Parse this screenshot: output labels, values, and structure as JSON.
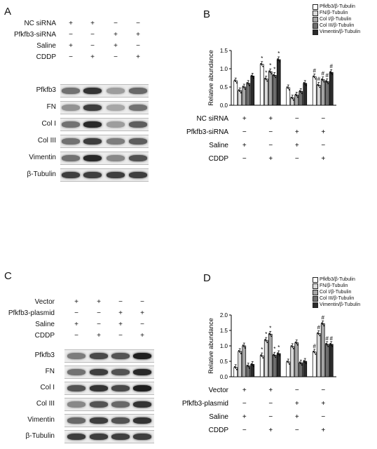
{
  "panels": {
    "A": {
      "letter": "A",
      "rows": [
        {
          "label": "NC siRNA",
          "signs": [
            "+",
            "+",
            "−",
            "−"
          ]
        },
        {
          "label": "Pfkfb3-siRNA",
          "signs": [
            "−",
            "−",
            "+",
            "+"
          ]
        },
        {
          "label": "Saline",
          "signs": [
            "+",
            "−",
            "+",
            "−"
          ]
        },
        {
          "label": "CDDP",
          "signs": [
            "−",
            "+",
            "−",
            "+"
          ]
        }
      ],
      "blots": [
        {
          "label": "Pfkfb3",
          "intensity": [
            0.55,
            0.85,
            0.35,
            0.6
          ]
        },
        {
          "label": "FN",
          "intensity": [
            0.4,
            0.8,
            0.3,
            0.55
          ]
        },
        {
          "label": "Col I",
          "intensity": [
            0.55,
            0.9,
            0.35,
            0.65
          ]
        },
        {
          "label": "Col III",
          "intensity": [
            0.55,
            0.8,
            0.5,
            0.65
          ]
        },
        {
          "label": "Vimentin",
          "intensity": [
            0.55,
            0.9,
            0.45,
            0.7
          ]
        },
        {
          "label": "β-Tubulin",
          "intensity": [
            0.8,
            0.8,
            0.8,
            0.8
          ]
        }
      ]
    },
    "C": {
      "letter": "C",
      "rows": [
        {
          "label": "Vector",
          "signs": [
            "+",
            "+",
            "−",
            "−"
          ]
        },
        {
          "label": "Pfkfb3-plasmid",
          "signs": [
            "−",
            "−",
            "+",
            "+"
          ]
        },
        {
          "label": "Saline",
          "signs": [
            "+",
            "−",
            "+",
            "−"
          ]
        },
        {
          "label": "CDDP",
          "signs": [
            "−",
            "+",
            "−",
            "+"
          ]
        }
      ],
      "blots": [
        {
          "label": "Pfkfb3",
          "intensity": [
            0.5,
            0.75,
            0.7,
            0.95
          ]
        },
        {
          "label": "FN",
          "intensity": [
            0.55,
            0.8,
            0.7,
            0.9
          ]
        },
        {
          "label": "Col I",
          "intensity": [
            0.7,
            0.85,
            0.75,
            0.95
          ]
        },
        {
          "label": "Col III",
          "intensity": [
            0.45,
            0.7,
            0.6,
            0.85
          ]
        },
        {
          "label": "Vimentin",
          "intensity": [
            0.6,
            0.8,
            0.7,
            0.85
          ]
        },
        {
          "label": "β-Tubulin",
          "intensity": [
            0.8,
            0.8,
            0.8,
            0.8
          ]
        }
      ]
    }
  },
  "chart_data": [
    {
      "panel": "B",
      "type": "bar",
      "ylabel": "Relative abundance",
      "ylim": [
        0,
        1.5
      ],
      "yticks": [
        "0.0",
        "0.5",
        "1.0",
        "1.5"
      ],
      "legend": [
        "Pfkfb3/β-Tubulin",
        "FN/β-Tubulin",
        "Col I/β-Tubulin",
        "Col III/β-Tubulin",
        "Vimentin/β-Tubulin"
      ],
      "legend_position": "top-right",
      "series_colors": [
        "#ffffff",
        "#d9d9d9",
        "#a6a6a6",
        "#6e6e6e",
        "#2b2b2b"
      ],
      "groups": [
        {
          "values": [
            0.67,
            0.4,
            0.5,
            0.6,
            0.8
          ],
          "marks": [
            "",
            "",
            "",
            "",
            ""
          ]
        },
        {
          "values": [
            1.12,
            0.72,
            0.92,
            0.82,
            1.25
          ],
          "marks": [
            "*",
            "*",
            "*",
            "*",
            "*"
          ]
        },
        {
          "values": [
            0.48,
            0.2,
            0.28,
            0.38,
            0.6
          ],
          "marks": [
            "",
            "",
            "",
            "",
            ""
          ]
        },
        {
          "values": [
            0.78,
            0.55,
            0.7,
            0.65,
            0.9
          ],
          "marks": [
            "#",
            "#",
            "#",
            "#",
            "#"
          ]
        }
      ],
      "conditions": [
        {
          "label": "NC siRNA",
          "signs": [
            "+",
            "+",
            "−",
            "−"
          ]
        },
        {
          "label": "Pfkfb3-siRNA",
          "signs": [
            "−",
            "−",
            "+",
            "+"
          ]
        },
        {
          "label": "Saline",
          "signs": [
            "+",
            "−",
            "+",
            "−"
          ]
        },
        {
          "label": "CDDP",
          "signs": [
            "−",
            "+",
            "−",
            "+"
          ]
        }
      ]
    },
    {
      "panel": "D",
      "type": "bar",
      "ylabel": "Relative abundance",
      "ylim": [
        0,
        2.0
      ],
      "yticks": [
        "0.0",
        "0.5",
        "1.0",
        "1.5",
        "2.0"
      ],
      "legend": [
        "Pfkfb3/β-Tubulin",
        "FN/β-Tubulin",
        "Col I/β-Tubulin",
        "Col III/β-Tubulin",
        "Vimentin/β-Tubulin"
      ],
      "legend_position": "top-right",
      "series_colors": [
        "#ffffff",
        "#d9d9d9",
        "#a6a6a6",
        "#6e6e6e",
        "#2b2b2b"
      ],
      "groups": [
        {
          "values": [
            0.3,
            0.82,
            1.0,
            0.35,
            0.4
          ],
          "marks": [
            "",
            "",
            "",
            "",
            ""
          ]
        },
        {
          "values": [
            0.68,
            1.18,
            1.38,
            0.7,
            0.75
          ],
          "marks": [
            "*",
            "*",
            "*",
            "*",
            "*"
          ]
        },
        {
          "values": [
            0.48,
            0.98,
            1.1,
            0.45,
            0.5
          ],
          "marks": [
            "",
            "",
            "",
            "",
            ""
          ]
        },
        {
          "values": [
            0.8,
            1.4,
            1.72,
            1.05,
            1.05
          ],
          "marks": [
            "#",
            "#",
            "#",
            "#",
            "#"
          ]
        }
      ],
      "conditions": [
        {
          "label": "Vector",
          "signs": [
            "+",
            "+",
            "−",
            "−"
          ]
        },
        {
          "label": "Pfkfb3-plasmid",
          "signs": [
            "−",
            "−",
            "+",
            "+"
          ]
        },
        {
          "label": "Saline",
          "signs": [
            "+",
            "−",
            "+",
            "−"
          ]
        },
        {
          "label": "CDDP",
          "signs": [
            "−",
            "+",
            "−",
            "+"
          ]
        }
      ]
    }
  ]
}
